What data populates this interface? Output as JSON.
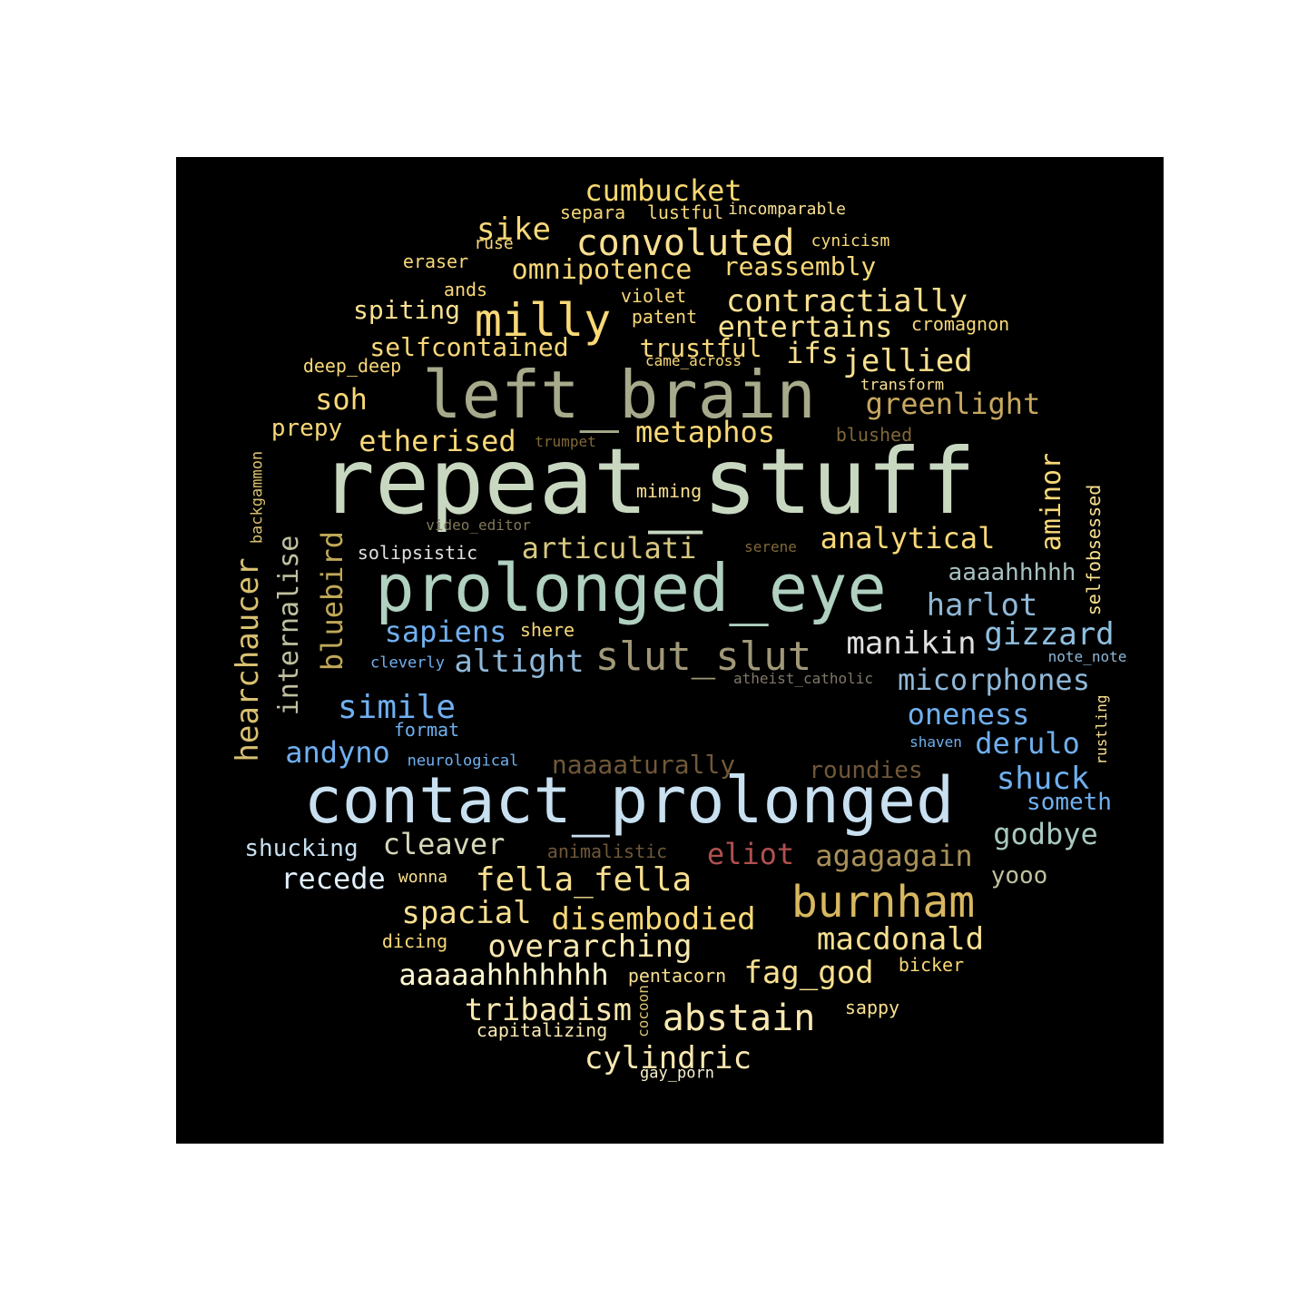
{
  "palette": {
    "background": "#000000",
    "page": "#ffffff"
  },
  "words": [
    {
      "text": "repeat_stuff",
      "color": "#c8d8c0"
    },
    {
      "text": "contact_prolonged",
      "color": "#c8e0f0"
    },
    {
      "text": "prolonged_eye",
      "color": "#b0d0c0"
    },
    {
      "text": "left_brain",
      "color": "#a8aa8c"
    },
    {
      "text": "milly",
      "color": "#f8d878"
    },
    {
      "text": "burnham",
      "color": "#d8b860"
    },
    {
      "text": "convoluted",
      "color": "#f8e090"
    },
    {
      "text": "slut_slut",
      "color": "#a09878"
    },
    {
      "text": "cumbucket",
      "color": "#f8d870"
    },
    {
      "text": "sike",
      "color": "#f8d878"
    },
    {
      "text": "contractially",
      "color": "#f8e090"
    },
    {
      "text": "entertains",
      "color": "#f8e090"
    },
    {
      "text": "omnipotence",
      "color": "#f8d878"
    },
    {
      "text": "reassembly",
      "color": "#f8d878"
    },
    {
      "text": "jellied",
      "color": "#f8e090"
    },
    {
      "text": "greenlight",
      "color": "#c8a860"
    },
    {
      "text": "etherised",
      "color": "#f8d878"
    },
    {
      "text": "metaphos",
      "color": "#f8d878"
    },
    {
      "text": "analytical",
      "color": "#f8d878"
    },
    {
      "text": "articulati",
      "color": "#d8c880"
    },
    {
      "text": "simile",
      "color": "#70b0f0"
    },
    {
      "text": "harlot",
      "color": "#90b8d8"
    },
    {
      "text": "gizzard",
      "color": "#90c0e0"
    },
    {
      "text": "manikin",
      "color": "#e0e0e0"
    },
    {
      "text": "altight",
      "color": "#90b8d8"
    },
    {
      "text": "sapiens",
      "color": "#70b0f0"
    },
    {
      "text": "micorphones",
      "color": "#90b8d8"
    },
    {
      "text": "oneness",
      "color": "#70b0f0"
    },
    {
      "text": "derulo",
      "color": "#70b0f0"
    },
    {
      "text": "shuck",
      "color": "#70b0f0"
    },
    {
      "text": "andyno",
      "color": "#70b0f0"
    },
    {
      "text": "agagagain",
      "color": "#a89058"
    },
    {
      "text": "eliot",
      "color": "#b05050"
    },
    {
      "text": "cleaver",
      "color": "#d8d8b8"
    },
    {
      "text": "fella_fella",
      "color": "#f8e090"
    },
    {
      "text": "recede",
      "color": "#e0f0ff"
    },
    {
      "text": "godbye",
      "color": "#a8c8c0"
    },
    {
      "text": "spacial",
      "color": "#f8e090"
    },
    {
      "text": "disembodied",
      "color": "#f8d878"
    },
    {
      "text": "macdonald",
      "color": "#f8e090"
    },
    {
      "text": "overarching",
      "color": "#f8e8b0"
    },
    {
      "text": "aaaaahhhhhhh",
      "color": "#fff8d0"
    },
    {
      "text": "fag_god",
      "color": "#f8e090"
    },
    {
      "text": "abstain",
      "color": "#f8e8b0"
    },
    {
      "text": "tribadism",
      "color": "#f8e8b0"
    },
    {
      "text": "cylindric",
      "color": "#f8e8b0"
    },
    {
      "text": "soh",
      "color": "#f8d878"
    },
    {
      "text": "ifs",
      "color": "#f8e090"
    },
    {
      "text": "trustful",
      "color": "#f8d878"
    },
    {
      "text": "selfcontained",
      "color": "#f8d878"
    },
    {
      "text": "spiting",
      "color": "#f8e090"
    },
    {
      "text": "prepy",
      "color": "#f8d878"
    },
    {
      "text": "shucking",
      "color": "#c8e0f0"
    },
    {
      "text": "naaaaturally",
      "color": "#705838"
    },
    {
      "text": "roundies",
      "color": "#705838"
    },
    {
      "text": "someth",
      "color": "#70b0f0"
    },
    {
      "text": "aaaahhhhh",
      "color": "#a8c0c0"
    },
    {
      "text": "yooo",
      "color": "#c0c0a0"
    },
    {
      "text": "separa",
      "color": "#f8d878"
    },
    {
      "text": "lustful",
      "color": "#f8d878"
    },
    {
      "text": "incomparable",
      "color": "#f8e090"
    },
    {
      "text": "ruse",
      "color": "#f8d878"
    },
    {
      "text": "cynicism",
      "color": "#f8d878"
    },
    {
      "text": "eraser",
      "color": "#f8d878"
    },
    {
      "text": "ands",
      "color": "#f8d878"
    },
    {
      "text": "violet",
      "color": "#f8d878"
    },
    {
      "text": "patent",
      "color": "#f8d878"
    },
    {
      "text": "cromagnon",
      "color": "#f8d878"
    },
    {
      "text": "deep_deep",
      "color": "#f8d878"
    },
    {
      "text": "came_across",
      "color": "#f8d878"
    },
    {
      "text": "transform",
      "color": "#f8e090"
    },
    {
      "text": "blushed",
      "color": "#806838"
    },
    {
      "text": "trumpet",
      "color": "#806838"
    },
    {
      "text": "miming",
      "color": "#f8e090"
    },
    {
      "text": "video_editor",
      "color": "#807858"
    },
    {
      "text": "solipsistic",
      "color": "#e0e0e0"
    },
    {
      "text": "serene",
      "color": "#806838"
    },
    {
      "text": "shere",
      "color": "#f8d878"
    },
    {
      "text": "cleverly",
      "color": "#70b0f0"
    },
    {
      "text": "atheist_catholic",
      "color": "#807868"
    },
    {
      "text": "note_note",
      "color": "#90b8d8"
    },
    {
      "text": "format",
      "color": "#70b0f0"
    },
    {
      "text": "neurological",
      "color": "#70b0f0"
    },
    {
      "text": "shaven",
      "color": "#70b0f0"
    },
    {
      "text": "animalistic",
      "color": "#705838"
    },
    {
      "text": "wonna",
      "color": "#f8e090"
    },
    {
      "text": "dicing",
      "color": "#f8d878"
    },
    {
      "text": "pentacorn",
      "color": "#f8e090"
    },
    {
      "text": "bicker",
      "color": "#f8d878"
    },
    {
      "text": "sappy",
      "color": "#f8e090"
    },
    {
      "text": "capitalizing",
      "color": "#f8e8b0"
    },
    {
      "text": "gay_porn",
      "color": "#f8f0d0"
    },
    {
      "text": "hearchaucer",
      "color": "#d8c070"
    },
    {
      "text": "internalise",
      "color": "#c0c0a0"
    },
    {
      "text": "bluebird",
      "color": "#c0a858"
    },
    {
      "text": "backgammon",
      "color": "#d8c070"
    },
    {
      "text": "aminor",
      "color": "#f8d878"
    },
    {
      "text": "selfobsessed",
      "color": "#f8e090"
    },
    {
      "text": "rustling",
      "color": "#f8e090"
    },
    {
      "text": "cocoon",
      "color": "#d8c070"
    }
  ]
}
